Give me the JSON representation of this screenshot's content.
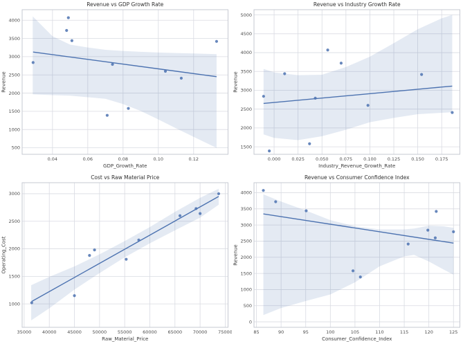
{
  "figure": {
    "background": "#ffffff"
  },
  "style": {
    "accent": "#4c72b0",
    "point_opacity": 0.85,
    "band_opacity": 0.15,
    "grid_color": "#d9dbe2",
    "spine_color": "#c6c9d2",
    "title_color": "#2e2e2e",
    "label_color": "#3c3c3c",
    "tick_color": "#4d4d4d"
  },
  "chart_data": [
    {
      "type": "scatter",
      "title": "Revenue vs GDP Growth Rate",
      "xlabel": "GDP_Growth_Rate",
      "ylabel": "Revenue",
      "grid": true,
      "legend": false,
      "points": {
        "x": [
          0.029,
          0.049,
          0.048,
          0.051,
          0.074,
          0.071,
          0.083,
          0.104,
          0.113,
          0.133
        ],
        "y": [
          2840,
          4070,
          3720,
          3440,
          2790,
          1390,
          1580,
          2600,
          2410,
          3420
        ]
      },
      "xlim": [
        0.0228,
        0.1395
      ],
      "ylim": [
        320,
        4290
      ],
      "xticks": {
        "values": [
          0.04,
          0.06,
          0.08,
          0.1,
          0.12
        ],
        "labels": [
          "0.04",
          "0.06",
          "0.08",
          "0.10",
          "0.12"
        ]
      },
      "yticks": {
        "values": [
          500,
          1000,
          1500,
          2000,
          2500,
          3000,
          3500,
          4000
        ],
        "labels": [
          "500",
          "1000",
          "1500",
          "2000",
          "2500",
          "3000",
          "3500",
          "4000"
        ]
      },
      "regression": {
        "type": "linear",
        "ci_band": {
          "x": [
            0.0288,
            0.04,
            0.05,
            0.06,
            0.07,
            0.08,
            0.09,
            0.1,
            0.11,
            0.12,
            0.133
          ],
          "upper": [
            4108,
            3560,
            3330,
            3253,
            3188,
            3158,
            3133,
            3114,
            3101,
            3088,
            3069
          ],
          "lower": [
            1966,
            1945,
            1930,
            1888,
            1845,
            1700,
            1510,
            1276,
            1034,
            800,
            496
          ]
        }
      }
    },
    {
      "type": "scatter",
      "title": "Revenue vs Industry Growth Rate",
      "xlabel": "Industry_Revenue_Growth_Rate",
      "ylabel": "Revenue",
      "grid": true,
      "legend": false,
      "points": {
        "x": [
          -0.011,
          0.056,
          0.07,
          0.011,
          0.043,
          -0.005,
          0.037,
          0.098,
          0.186,
          0.154
        ],
        "y": [
          2840,
          4070,
          3720,
          3440,
          2790,
          1390,
          1580,
          2600,
          2410,
          3420
        ]
      },
      "xlim": [
        -0.021,
        0.194
      ],
      "ylim": [
        1300,
        5140
      ],
      "xticks": {
        "values": [
          0.0,
          0.025,
          0.05,
          0.075,
          0.1,
          0.125,
          0.15,
          0.175
        ],
        "labels": [
          "0.000",
          "0.025",
          "0.050",
          "0.075",
          "0.100",
          "0.125",
          "0.150",
          "0.175"
        ]
      },
      "yticks": {
        "values": [
          1500,
          2000,
          2500,
          3000,
          3500,
          4000,
          4500,
          5000
        ],
        "labels": [
          "1500",
          "2000",
          "2500",
          "3000",
          "3500",
          "4000",
          "4500",
          "5000"
        ]
      },
      "regression": {
        "type": "linear",
        "ci_band": {
          "x": [
            -0.011,
            0.0,
            0.025,
            0.05,
            0.075,
            0.1,
            0.125,
            0.15,
            0.175,
            0.186
          ],
          "upper": [
            3567,
            3475,
            3401,
            3414,
            3617,
            3894,
            4251,
            4621,
            4911,
            5003
          ],
          "lower": [
            1829,
            1737,
            1676,
            1781,
            1953,
            2151,
            2267,
            2365,
            2402,
            2415
          ]
        }
      }
    },
    {
      "type": "scatter",
      "title": "Cost vs Raw Material Price",
      "xlabel": "Raw_Material_Price",
      "ylabel": "Operating_Cost",
      "grid": true,
      "legend": false,
      "points": {
        "x": [
          36500,
          45000,
          48000,
          49000,
          55300,
          57800,
          66000,
          69200,
          70000,
          73700
        ],
        "y": [
          1020,
          1150,
          1880,
          1980,
          1810,
          2160,
          2600,
          2730,
          2640,
          3000
        ]
      },
      "xlim": [
        34600,
        75560
      ],
      "ylim": [
        575,
        3200
      ],
      "xticks": {
        "values": [
          35000,
          40000,
          45000,
          50000,
          55000,
          60000,
          65000,
          70000,
          75000
        ],
        "labels": [
          "35000",
          "40000",
          "45000",
          "50000",
          "55000",
          "60000",
          "65000",
          "70000",
          "75000"
        ]
      },
      "yticks": {
        "values": [
          1000,
          1500,
          2000,
          2500,
          3000
        ],
        "labels": [
          "1000",
          "1500",
          "2000",
          "2500",
          "3000"
        ]
      },
      "regression": {
        "type": "linear",
        "ci_band": {
          "x": [
            36400,
            40000,
            45000,
            50000,
            55000,
            60000,
            65000,
            70000,
            73700
          ],
          "upper": [
            1340,
            1490,
            1680,
            1900,
            2140,
            2395,
            2670,
            2925,
            3090
          ],
          "lower": [
            700,
            920,
            1260,
            1560,
            1845,
            2100,
            2335,
            2565,
            2800
          ]
        }
      }
    },
    {
      "type": "scatter",
      "title": "Revenue vs Consumer Confidence Index",
      "xlabel": "Consumer_Confidence_Index",
      "ylabel": "Revenue",
      "grid": true,
      "legend": false,
      "points": {
        "x": [
          119.8,
          86.4,
          88.9,
          95.1,
          125.0,
          106.1,
          104.6,
          121.3,
          115.8,
          121.5
        ],
        "y": [
          2840,
          4070,
          3720,
          3440,
          2790,
          1390,
          1580,
          2600,
          2410,
          3420
        ]
      },
      "xlim": [
        84.5,
        126.3
      ],
      "ylim": [
        -170,
        4310
      ],
      "xticks": {
        "values": [
          85,
          90,
          95,
          100,
          105,
          110,
          115,
          120,
          125
        ],
        "labels": [
          "85",
          "90",
          "95",
          "100",
          "105",
          "110",
          "115",
          "120",
          "125"
        ]
      },
      "yticks": {
        "values": [
          0,
          500,
          1000,
          1500,
          2000,
          2500,
          3000,
          3500,
          4000
        ],
        "labels": [
          "0",
          "500",
          "1000",
          "1500",
          "2000",
          "2500",
          "3000",
          "3500",
          "4000"
        ]
      },
      "regression": {
        "type": "linear",
        "ci_band": {
          "x": [
            86.4,
            90,
            95,
            100,
            105,
            110,
            115,
            117,
            120,
            123,
            125
          ],
          "upper": [
            3951,
            3727,
            3449,
            3149,
            2959,
            2863,
            2863,
            2890,
            2979,
            2960,
            2910
          ],
          "lower": [
            210,
            428,
            645,
            849,
            1224,
            1720,
            2026,
            2073,
            1869,
            1620,
            1461
          ]
        }
      }
    }
  ]
}
